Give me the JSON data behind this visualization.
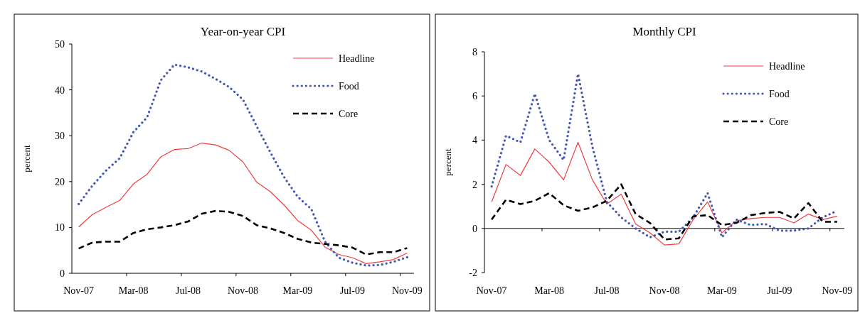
{
  "chart_data": [
    {
      "type": "line",
      "title": "Year-on-year CPI",
      "ylabel": "percent",
      "categories": [
        "Nov-07",
        null,
        null,
        null,
        "Mar-08",
        null,
        null,
        null,
        "Jul-08",
        null,
        null,
        null,
        "Nov-08",
        null,
        null,
        null,
        "Mar-09",
        null,
        null,
        null,
        "Jul-09",
        null,
        null,
        null,
        "Nov-09"
      ],
      "ylim": [
        0,
        50
      ],
      "yticks": [
        0,
        10,
        20,
        30,
        40,
        50
      ],
      "legend": "top right",
      "series": [
        {
          "name": "Headline",
          "color": "#f03c3c",
          "line_style": "solid",
          "values": [
            10.1,
            12.8,
            14.4,
            15.9,
            19.5,
            21.6,
            25.4,
            27.0,
            27.2,
            28.4,
            28.0,
            26.8,
            24.3,
            19.9,
            17.8,
            14.9,
            11.5,
            9.4,
            5.7,
            4.1,
            3.4,
            2.1,
            2.5,
            3.0,
            4.4
          ]
        },
        {
          "name": "Food",
          "color": "#4458b4",
          "line_style": "dotted",
          "values": [
            15.1,
            19.1,
            22.4,
            25.1,
            30.8,
            34.0,
            42.1,
            45.5,
            44.9,
            44.0,
            42.4,
            40.6,
            37.9,
            32.1,
            26.4,
            21.0,
            16.7,
            14.0,
            6.9,
            3.4,
            2.3,
            1.7,
            1.8,
            2.5,
            3.5
          ]
        },
        {
          "name": "Core",
          "color": "#000000",
          "line_style": "dashed",
          "values": [
            5.4,
            6.7,
            6.9,
            6.9,
            8.8,
            9.6,
            10.0,
            10.5,
            11.3,
            13.0,
            13.6,
            13.4,
            12.5,
            10.5,
            9.8,
            8.8,
            7.5,
            6.7,
            6.4,
            6.1,
            5.6,
            4.1,
            4.6,
            4.6,
            5.5
          ]
        }
      ]
    },
    {
      "type": "line",
      "title": "Monthly CPI",
      "ylabel": "percent",
      "categories": [
        "Nov-07",
        null,
        null,
        null,
        "Mar-08",
        null,
        null,
        null,
        "Jul-08",
        null,
        null,
        null,
        "Nov-08",
        null,
        null,
        null,
        "Mar-09",
        null,
        null,
        null,
        "Jul-09",
        null,
        null,
        null,
        "Nov-09"
      ],
      "ylim": [
        -2,
        8
      ],
      "yticks": [
        -2,
        0,
        2,
        4,
        6,
        8
      ],
      "legend": "top right",
      "series": [
        {
          "name": "Headline",
          "color": "#f03c3c",
          "line_style": "solid",
          "values": [
            1.2,
            2.9,
            2.4,
            3.6,
            3.0,
            2.2,
            3.9,
            2.2,
            1.1,
            1.55,
            0.2,
            -0.2,
            -0.75,
            -0.7,
            0.4,
            1.2,
            -0.2,
            0.35,
            0.45,
            0.5,
            0.5,
            0.25,
            0.65,
            0.4,
            0.55
          ]
        },
        {
          "name": "Food",
          "color": "#4458b4",
          "line_style": "dotted",
          "values": [
            1.9,
            4.2,
            3.9,
            6.1,
            4.0,
            3.1,
            7.0,
            3.7,
            1.2,
            0.5,
            0.0,
            -0.4,
            -0.15,
            -0.15,
            0.5,
            1.6,
            -0.4,
            0.4,
            0.15,
            0.2,
            -0.1,
            -0.1,
            0.0,
            0.5,
            0.8
          ]
        },
        {
          "name": "Core",
          "color": "#000000",
          "line_style": "dashed",
          "values": [
            0.4,
            1.3,
            1.1,
            1.25,
            1.6,
            1.05,
            0.8,
            0.95,
            1.25,
            2.0,
            0.65,
            0.25,
            -0.5,
            -0.45,
            0.55,
            0.6,
            0.15,
            0.25,
            0.6,
            0.7,
            0.75,
            0.45,
            1.15,
            0.3,
            0.3
          ]
        }
      ]
    }
  ]
}
